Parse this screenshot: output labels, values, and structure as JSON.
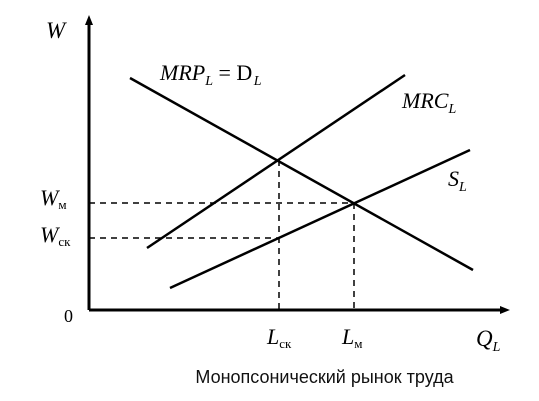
{
  "axes": {
    "y_label": "W",
    "x_label": "Q",
    "x_label_sub": "L",
    "origin": "0"
  },
  "curves": {
    "mrp": {
      "main": "MRP",
      "sub": "L",
      "eq": " = D",
      "eq_sub": "L"
    },
    "mrc": {
      "main": "MRC",
      "sub": "L"
    },
    "supply": {
      "main": "S",
      "sub": "L"
    }
  },
  "ticks": {
    "w_m": {
      "main": "W",
      "sub": "м"
    },
    "w_sk": {
      "main": "W",
      "sub": "ск"
    },
    "l_sk": {
      "main": "L",
      "sub": "ск"
    },
    "l_m": {
      "main": "L",
      "sub": "м"
    }
  },
  "caption": "Монопсонический рынок труда"
}
